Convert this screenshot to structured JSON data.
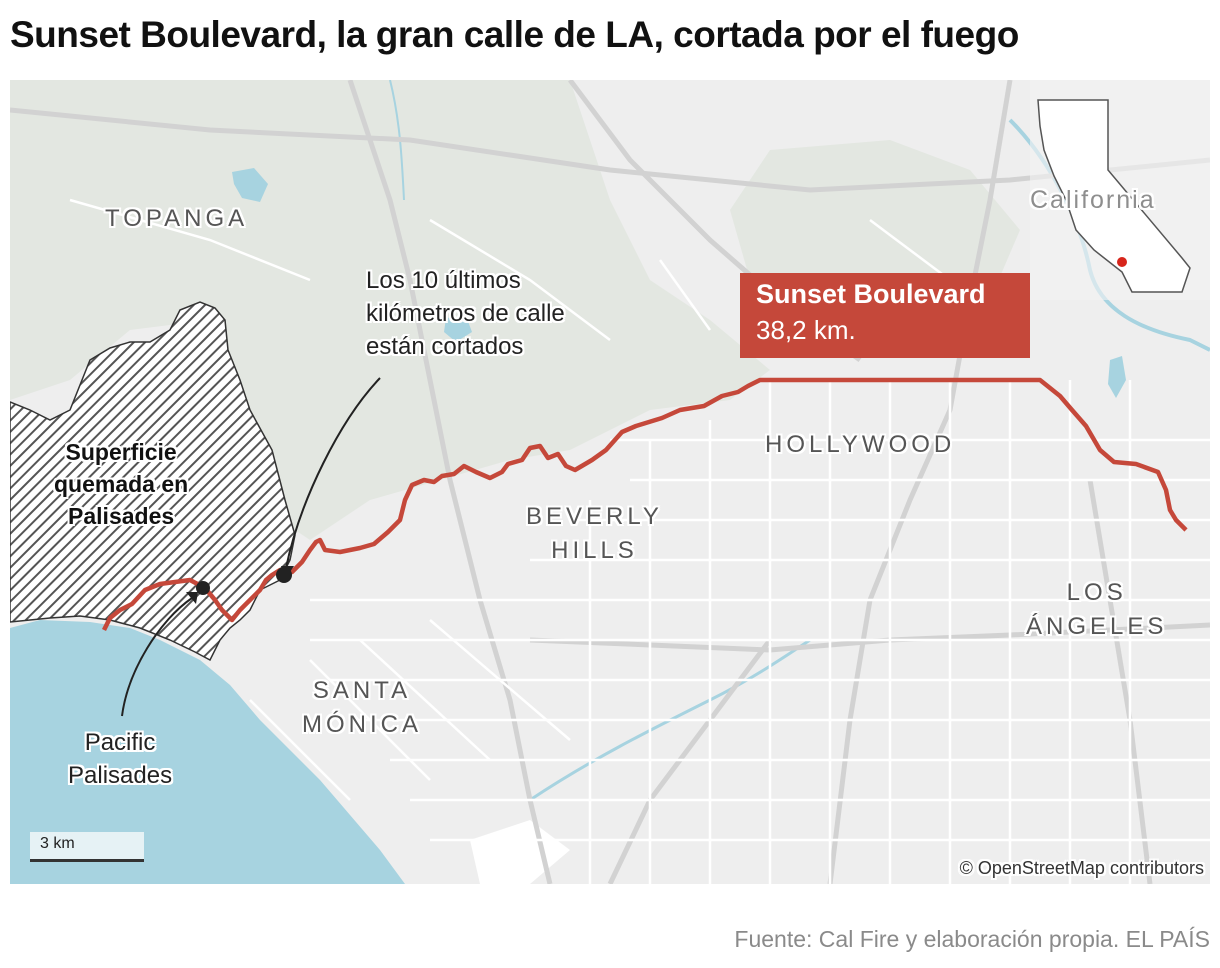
{
  "title": "Sunset Boulevard, la gran calle de LA, cortada por el fuego",
  "map": {
    "places": {
      "topanga": "TOPANGA",
      "beverly_hills_1": "BEVERLY",
      "beverly_hills_2": "HILLS",
      "hollywood": "HOLLYWOOD",
      "santa_monica_1": "SANTA",
      "santa_monica_2": "MÓNICA",
      "los_angeles_1": "LOS",
      "los_angeles_2": "ÁNGELES"
    },
    "burn_area": {
      "line1": "Superficie",
      "line2": "quemada en",
      "line3": "Palisades"
    },
    "closed_note": {
      "line1": "Los 10 últimos",
      "line2": "kilómetros de calle",
      "line3": "están cortados"
    },
    "pacific_palisades": {
      "line1": "Pacific",
      "line2": "Palisades"
    },
    "sunset": {
      "name": "Sunset Boulevard",
      "length": "38,2 km."
    },
    "inset_label": "California",
    "scale": "3 km",
    "attribution": "© OpenStreetMap contributors",
    "colors": {
      "route": "#c5483a",
      "water": "#a7d3e0",
      "land": "#eeeeee",
      "green": "#e4e8e2",
      "roads": "#ffffff"
    }
  },
  "source": "Fuente: Cal Fire y elaboración propia. EL PAÍS"
}
